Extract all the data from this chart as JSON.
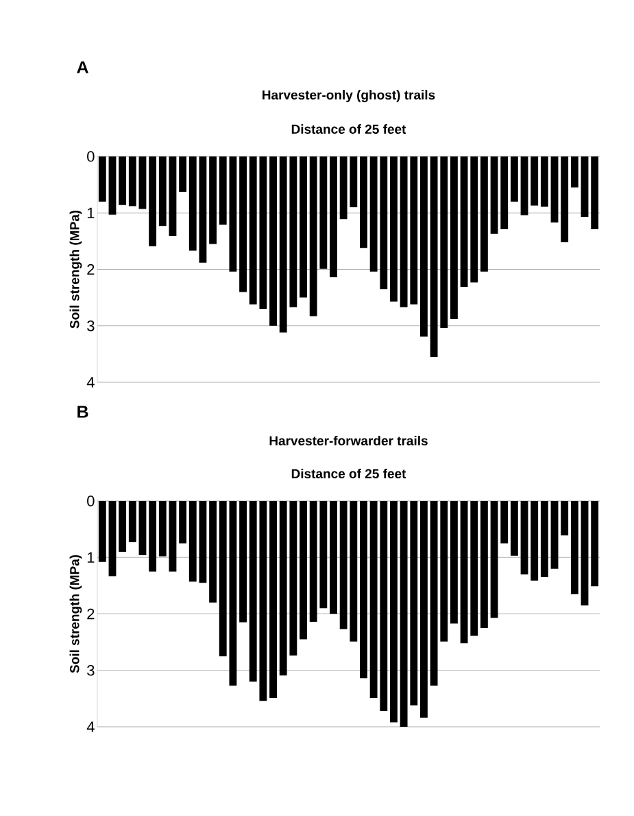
{
  "chart_data": [
    {
      "type": "bar",
      "title": "Harvester-only (ghost) trails",
      "subtitle": "Distance of 25 feet",
      "ylabel": "Soil strength (MPa)",
      "annotations": [
        "A"
      ],
      "categories": [
        null,
        null,
        null,
        null,
        null,
        null,
        null,
        null,
        null,
        null,
        null,
        null,
        null,
        null,
        null,
        null,
        null,
        null,
        null,
        null,
        null,
        null,
        null,
        null,
        null,
        null,
        null,
        null,
        null,
        null,
        null,
        null,
        null,
        null,
        null,
        null,
        null,
        null,
        null,
        null,
        null,
        null,
        null,
        null,
        null,
        null,
        null,
        null,
        null,
        null
      ],
      "values": [
        0.8,
        1.03,
        0.86,
        0.88,
        0.93,
        1.59,
        1.23,
        1.41,
        0.63,
        1.67,
        1.88,
        1.55,
        1.21,
        2.04,
        2.4,
        2.62,
        2.7,
        3.0,
        3.12,
        2.67,
        2.5,
        2.83,
        1.99,
        2.14,
        1.11,
        0.9,
        1.62,
        2.04,
        2.35,
        2.57,
        2.67,
        2.62,
        3.19,
        3.55,
        3.04,
        2.88,
        2.31,
        2.23,
        2.04,
        1.37,
        1.29,
        0.8,
        1.04,
        0.87,
        0.89,
        1.17,
        1.52,
        0.55,
        1.07,
        1.29
      ],
      "color": "#000000",
      "ylim": [
        4,
        0
      ],
      "yticks": [
        0,
        1,
        2,
        3,
        4
      ],
      "grid": "y"
    },
    {
      "type": "bar",
      "title": "Harvester-forwarder trails",
      "subtitle": "Distance of 25 feet",
      "ylabel": "Soil strength (MPa)",
      "annotations": [
        "B"
      ],
      "categories": [
        null,
        null,
        null,
        null,
        null,
        null,
        null,
        null,
        null,
        null,
        null,
        null,
        null,
        null,
        null,
        null,
        null,
        null,
        null,
        null,
        null,
        null,
        null,
        null,
        null,
        null,
        null,
        null,
        null,
        null,
        null,
        null,
        null,
        null,
        null,
        null,
        null,
        null,
        null,
        null,
        null,
        null,
        null,
        null,
        null,
        null,
        null,
        null,
        null,
        null
      ],
      "values": [
        1.08,
        1.33,
        0.9,
        0.73,
        0.96,
        1.25,
        0.98,
        1.25,
        0.75,
        1.43,
        1.45,
        1.8,
        2.75,
        3.27,
        2.15,
        3.2,
        3.54,
        3.49,
        3.09,
        2.74,
        2.45,
        2.14,
        1.9,
        2.0,
        2.27,
        2.49,
        3.14,
        3.49,
        3.72,
        3.92,
        4.0,
        3.62,
        3.84,
        3.27,
        2.49,
        2.17,
        2.52,
        2.39,
        2.25,
        2.07,
        0.75,
        0.97,
        1.3,
        1.41,
        1.35,
        1.2,
        0.61,
        1.65,
        1.85,
        1.51
      ],
      "color": "#000000",
      "ylim": [
        4,
        0
      ],
      "yticks": [
        0,
        1,
        2,
        3,
        4
      ],
      "grid": "y"
    }
  ]
}
